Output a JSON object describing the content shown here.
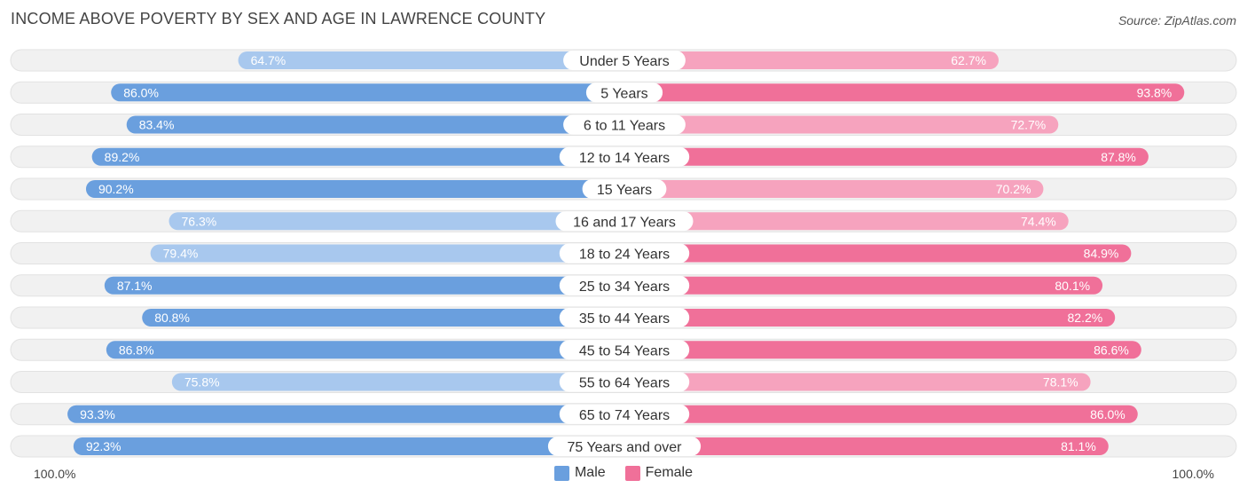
{
  "title": "INCOME ABOVE POVERTY BY SEX AND AGE IN LAWRENCE COUNTY",
  "source": "Source: ZipAtlas.com",
  "axis": {
    "left_label": "100.0%",
    "right_label": "100.0%"
  },
  "legend": [
    {
      "name": "Male",
      "color": "#6a9fde"
    },
    {
      "name": "Female",
      "color": "#f07099"
    }
  ],
  "colors": {
    "male_strong": "#6a9fde",
    "male_light": "#a8c8ee",
    "female_strong": "#f07099",
    "female_light": "#f6a3be",
    "track": "#efefef"
  },
  "chart_data": {
    "type": "bar",
    "orientation": "horizontal-diverging",
    "title": "INCOME ABOVE POVERTY BY SEX AND AGE IN LAWRENCE COUNTY",
    "xlim": [
      0,
      100
    ],
    "categories": [
      "Under 5 Years",
      "5 Years",
      "6 to 11 Years",
      "12 to 14 Years",
      "15 Years",
      "16 and 17 Years",
      "18 to 24 Years",
      "25 to 34 Years",
      "35 to 44 Years",
      "45 to 54 Years",
      "55 to 64 Years",
      "65 to 74 Years",
      "75 Years and over"
    ],
    "series": [
      {
        "name": "Male",
        "values": [
          64.7,
          86.0,
          83.4,
          89.2,
          90.2,
          76.3,
          79.4,
          87.1,
          80.8,
          86.8,
          75.8,
          93.3,
          92.3
        ]
      },
      {
        "name": "Female",
        "values": [
          62.7,
          93.8,
          72.7,
          87.8,
          70.2,
          74.4,
          84.9,
          80.1,
          82.2,
          86.6,
          78.1,
          86.0,
          81.1
        ]
      }
    ],
    "value_labels": {
      "Male": [
        "64.7%",
        "86.0%",
        "83.4%",
        "89.2%",
        "90.2%",
        "76.3%",
        "79.4%",
        "87.1%",
        "80.8%",
        "86.8%",
        "75.8%",
        "93.3%",
        "92.3%"
      ],
      "Female": [
        "62.7%",
        "93.8%",
        "72.7%",
        "87.8%",
        "70.2%",
        "74.4%",
        "84.9%",
        "80.1%",
        "82.2%",
        "86.6%",
        "78.1%",
        "86.0%",
        "81.1%"
      ]
    }
  }
}
